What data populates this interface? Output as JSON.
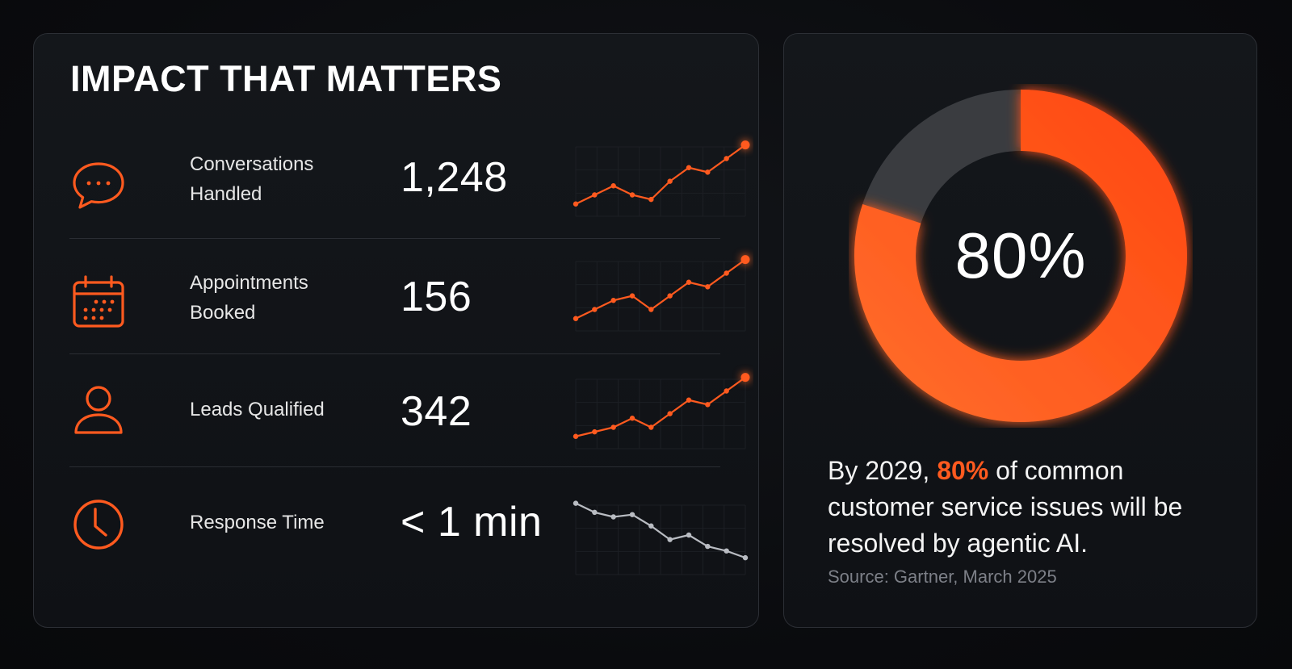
{
  "metrics": {
    "title": "IMPACT THAT MATTERS",
    "rows": [
      {
        "label_line1": "Conversations",
        "label_line2": "Handled",
        "value": "1,248",
        "icon": "chat-bubble-icon",
        "trend": [
          2,
          4,
          6,
          4,
          3,
          7,
          10,
          9,
          12,
          15
        ]
      },
      {
        "label_line1": "Appointments",
        "label_line2": "Booked",
        "value": "156",
        "icon": "calendar-icon",
        "trend": [
          2,
          4,
          6,
          7,
          4,
          7,
          10,
          9,
          12,
          15
        ]
      },
      {
        "label_line1": "Leads Qualified",
        "label_line2": "",
        "value": "342",
        "icon": "user-icon",
        "trend": [
          2,
          3,
          4,
          6,
          4,
          7,
          10,
          9,
          12,
          15
        ]
      },
      {
        "label_line1": "Response Time",
        "label_line2": "",
        "value": "< 1 min",
        "icon": "clock-icon",
        "trend": [
          15,
          13,
          12,
          12.5,
          10,
          7,
          8,
          5.5,
          4.5,
          3
        ]
      }
    ]
  },
  "stat": {
    "percent": 80,
    "center_label": "80%",
    "statement_prefix": "By 2029, ",
    "statement_accent": "80%",
    "statement_suffix": " of common customer service issues will be resolved by agentic AI.",
    "source": "Source: Gartner, March 2025"
  },
  "colors": {
    "accent": "#ff5a1f",
    "accent_glow": "#ff6a2a",
    "donut_rest": "#3a3c40",
    "neutral_line": "#b9bcc2"
  }
}
